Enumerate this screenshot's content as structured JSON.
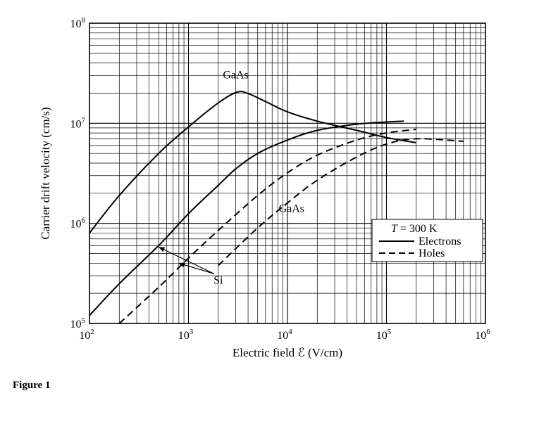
{
  "figure_caption": "Figure 1",
  "chart_data": {
    "type": "line",
    "x_scale": "log",
    "y_scale": "log",
    "xlim": [
      100,
      1000000
    ],
    "ylim": [
      100000,
      100000000
    ],
    "xlabel": "Electric field ℰ (V/cm)",
    "ylabel": "Carrier drift velocity (cm/s)",
    "x_ticks": [
      {
        "base": "10",
        "exp": "2",
        "value": 100
      },
      {
        "base": "10",
        "exp": "3",
        "value": 1000
      },
      {
        "base": "10",
        "exp": "4",
        "value": 10000
      },
      {
        "base": "10",
        "exp": "5",
        "value": 100000
      },
      {
        "base": "10",
        "exp": "6",
        "value": 1000000
      }
    ],
    "y_ticks": [
      {
        "base": "10",
        "exp": "5",
        "value": 100000
      },
      {
        "base": "10",
        "exp": "6",
        "value": 1000000
      },
      {
        "base": "10",
        "exp": "7",
        "value": 10000000
      },
      {
        "base": "10",
        "exp": "8",
        "value": 100000000
      }
    ],
    "grid": true,
    "legend": {
      "placement": "lower-right",
      "title_var": "T",
      "title_rest": " = 300 K",
      "entries": [
        {
          "label": "Electrons",
          "style": "solid"
        },
        {
          "label": "Holes",
          "style": "dashed"
        }
      ]
    },
    "series": [
      {
        "material": "GaAs",
        "carrier": "electrons",
        "style": "solid",
        "points": [
          [
            100,
            800000
          ],
          [
            200,
            1900000
          ],
          [
            500,
            5000000
          ],
          [
            1000,
            9200000
          ],
          [
            2000,
            16000000
          ],
          [
            3100,
            20500000
          ],
          [
            4000,
            19800000
          ],
          [
            6000,
            16500000
          ],
          [
            10000,
            13000000
          ],
          [
            20000,
            10500000
          ],
          [
            50000,
            8500000
          ],
          [
            100000,
            7200000
          ],
          [
            200000,
            6400000
          ]
        ]
      },
      {
        "material": "Si",
        "carrier": "electrons",
        "style": "solid",
        "points": [
          [
            100,
            120000
          ],
          [
            200,
            250000
          ],
          [
            500,
            600000
          ],
          [
            1000,
            1250000
          ],
          [
            2000,
            2400000
          ],
          [
            3000,
            3500000
          ],
          [
            5000,
            5000000
          ],
          [
            10000,
            6800000
          ],
          [
            20000,
            8500000
          ],
          [
            50000,
            9800000
          ],
          [
            100000,
            10300000
          ],
          [
            150000,
            10500000
          ]
        ]
      },
      {
        "material": "GaAs",
        "carrier": "holes",
        "style": "dashed",
        "points": [
          [
            200,
            100000
          ],
          [
            500,
            230000
          ],
          [
            1000,
            450000
          ],
          [
            2000,
            850000
          ],
          [
            5000,
            1900000
          ],
          [
            10000,
            3200000
          ],
          [
            20000,
            4800000
          ],
          [
            50000,
            6800000
          ],
          [
            100000,
            8000000
          ],
          [
            200000,
            8700000
          ]
        ]
      },
      {
        "material": "Si",
        "carrier": "holes",
        "style": "dashed",
        "points": [
          [
            2000,
            380000
          ],
          [
            5000,
            900000
          ],
          [
            10000,
            1600000
          ],
          [
            20000,
            2700000
          ],
          [
            50000,
            4600000
          ],
          [
            100000,
            6200000
          ],
          [
            200000,
            7000000
          ],
          [
            600000,
            6600000
          ]
        ]
      }
    ],
    "annotations": [
      {
        "text": "GaAs",
        "refers_to": "GaAs electrons",
        "at": [
          3000,
          28000000
        ]
      },
      {
        "text": "GaAs",
        "refers_to": "GaAs holes",
        "at": [
          11000,
          1300000
        ]
      },
      {
        "text": "Si",
        "refers_to": "Si curves",
        "at": [
          2000,
          250000
        ],
        "arrow_to": [
          [
            500,
            580000
          ],
          [
            800,
            400000
          ]
        ]
      }
    ]
  }
}
